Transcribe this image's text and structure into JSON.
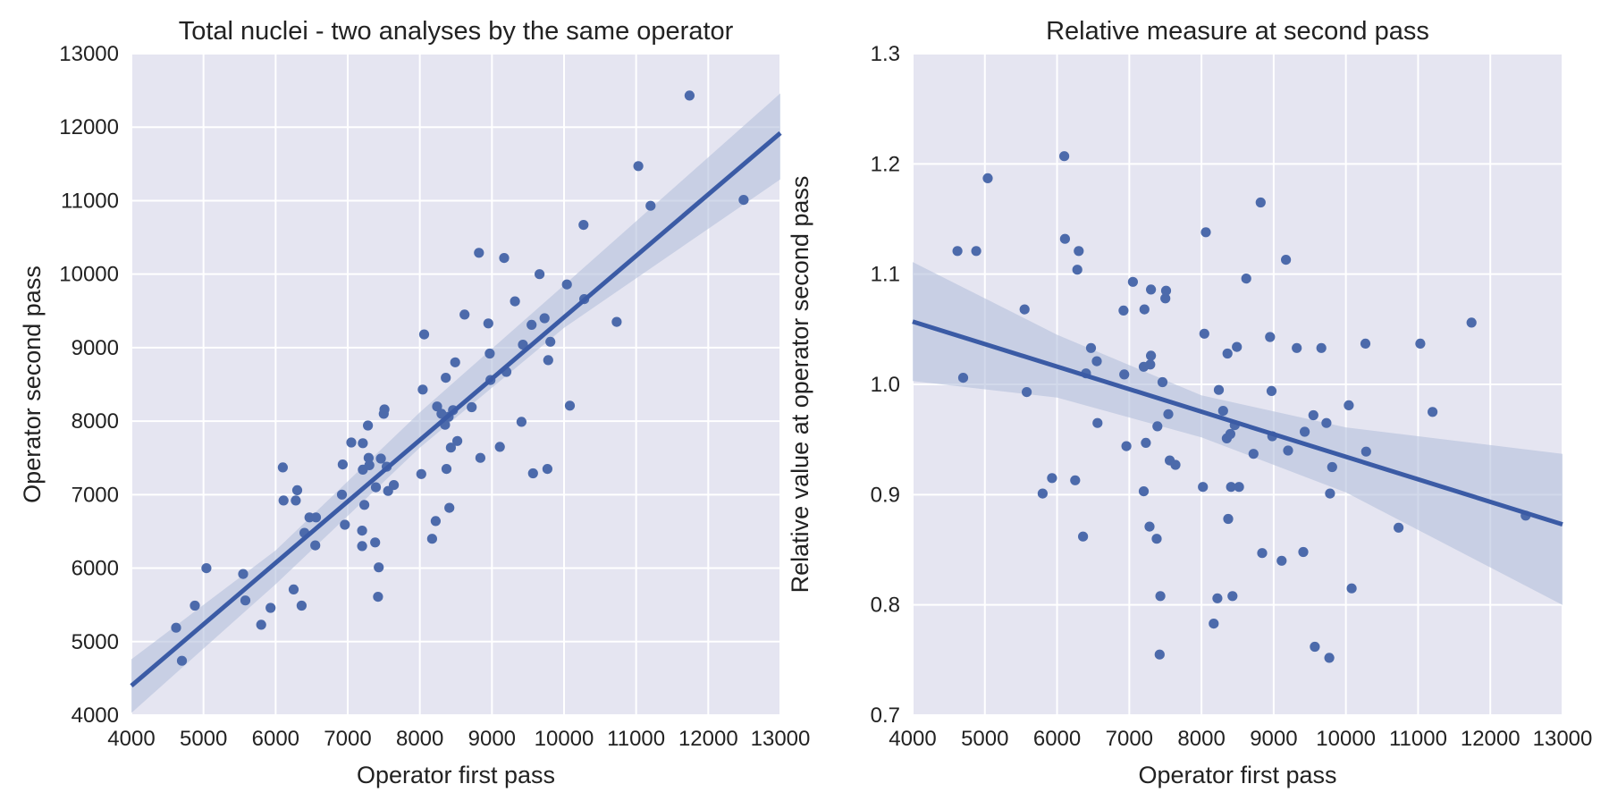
{
  "chart_data": [
    {
      "type": "scatter",
      "title": "Total nuclei - two analyses by the same operator",
      "xlabel": "Operator first pass",
      "ylabel": "Operator second pass",
      "xlim": [
        4000,
        13000
      ],
      "ylim": [
        4000,
        13000
      ],
      "xticks": [
        "4000",
        "5000",
        "6000",
        "7000",
        "8000",
        "9000",
        "10000",
        "11000",
        "12000",
        "13000"
      ],
      "yticks": [
        "4000",
        "5000",
        "6000",
        "7000",
        "8000",
        "9000",
        "10000",
        "11000",
        "12000",
        "13000"
      ],
      "grid": true,
      "background": "#e5e5f1",
      "point_color": "#4c6aab",
      "line_color": "#3b5ba5",
      "band_color": "#b4c0dc",
      "regression": {
        "x": [
          4000,
          13000
        ],
        "y": [
          4400,
          11920
        ]
      },
      "ci_band": {
        "x": [
          4000,
          6000,
          8000,
          10000,
          13000
        ],
        "lower": [
          4030,
          5780,
          7640,
          9270,
          11290
        ],
        "upper": [
          4760,
          6240,
          8120,
          9850,
          12460
        ]
      },
      "points": [
        [
          4620,
          5190
        ],
        [
          4700,
          4740
        ],
        [
          4880,
          5490
        ],
        [
          5040,
          6000
        ],
        [
          5550,
          5920
        ],
        [
          5580,
          5560
        ],
        [
          5800,
          5230
        ],
        [
          5930,
          5460
        ],
        [
          6100,
          7370
        ],
        [
          6110,
          6920
        ],
        [
          6250,
          5710
        ],
        [
          6280,
          6920
        ],
        [
          6300,
          7060
        ],
        [
          6360,
          5490
        ],
        [
          6400,
          6480
        ],
        [
          6470,
          6690
        ],
        [
          6550,
          6310
        ],
        [
          6560,
          6690
        ],
        [
          6920,
          7000
        ],
        [
          6930,
          7410
        ],
        [
          6960,
          6590
        ],
        [
          7050,
          7710
        ],
        [
          7200,
          6300
        ],
        [
          7200,
          6510
        ],
        [
          7210,
          7700
        ],
        [
          7210,
          7340
        ],
        [
          7230,
          6860
        ],
        [
          7280,
          7940
        ],
        [
          7290,
          7500
        ],
        [
          7300,
          7400
        ],
        [
          7380,
          6350
        ],
        [
          7390,
          7100
        ],
        [
          7420,
          5610
        ],
        [
          7430,
          6010
        ],
        [
          7460,
          7490
        ],
        [
          7500,
          8100
        ],
        [
          7510,
          8160
        ],
        [
          7540,
          7380
        ],
        [
          7560,
          7050
        ],
        [
          7640,
          7130
        ],
        [
          8020,
          7280
        ],
        [
          8040,
          8430
        ],
        [
          8060,
          9180
        ],
        [
          8170,
          6400
        ],
        [
          8220,
          6640
        ],
        [
          8240,
          8200
        ],
        [
          8300,
          8100
        ],
        [
          8350,
          7950
        ],
        [
          8360,
          8590
        ],
        [
          8370,
          7350
        ],
        [
          8400,
          8060
        ],
        [
          8410,
          6820
        ],
        [
          8430,
          7640
        ],
        [
          8460,
          8150
        ],
        [
          8490,
          8800
        ],
        [
          8520,
          7730
        ],
        [
          8620,
          9450
        ],
        [
          8720,
          8190
        ],
        [
          8820,
          10290
        ],
        [
          8840,
          7500
        ],
        [
          8950,
          9330
        ],
        [
          8970,
          8920
        ],
        [
          8980,
          8560
        ],
        [
          9110,
          7650
        ],
        [
          9170,
          10220
        ],
        [
          9200,
          8670
        ],
        [
          9320,
          9630
        ],
        [
          9410,
          7990
        ],
        [
          9430,
          9040
        ],
        [
          9550,
          9310
        ],
        [
          9570,
          7290
        ],
        [
          9660,
          10000
        ],
        [
          9730,
          9400
        ],
        [
          9770,
          7350
        ],
        [
          9780,
          8830
        ],
        [
          9810,
          9080
        ],
        [
          10040,
          9860
        ],
        [
          10080,
          8210
        ],
        [
          10270,
          10670
        ],
        [
          10280,
          9660
        ],
        [
          10730,
          9350
        ],
        [
          11030,
          11470
        ],
        [
          11200,
          10930
        ],
        [
          11740,
          12430
        ],
        [
          12490,
          11010
        ]
      ]
    },
    {
      "type": "scatter",
      "title": "Relative measure at second pass",
      "xlabel": "Operator first pass",
      "ylabel": "Relative value at operator second pass",
      "xlim": [
        4000,
        13000
      ],
      "ylim": [
        0.7,
        1.3
      ],
      "xticks": [
        "4000",
        "5000",
        "6000",
        "7000",
        "8000",
        "9000",
        "10000",
        "11000",
        "12000",
        "13000"
      ],
      "yticks": [
        "0.7",
        "0.8",
        "0.9",
        "1.0",
        "1.1",
        "1.2",
        "1.3"
      ],
      "grid": true,
      "background": "#e5e5f1",
      "point_color": "#4c6aab",
      "line_color": "#3b5ba5",
      "band_color": "#b4c0dc",
      "regression": {
        "x": [
          4000,
          13000
        ],
        "y": [
          1.057,
          0.873
        ]
      },
      "ci_band": {
        "x": [
          4000,
          6000,
          8000,
          10000,
          13000
        ],
        "lower": [
          1.003,
          0.988,
          0.952,
          0.902,
          0.8
        ],
        "upper": [
          1.111,
          1.045,
          0.99,
          0.961,
          0.937
        ]
      },
      "points": [
        [
          4620,
          1.121
        ],
        [
          4700,
          1.006
        ],
        [
          4880,
          1.121
        ],
        [
          5040,
          1.187
        ],
        [
          5550,
          1.068
        ],
        [
          5580,
          0.993
        ],
        [
          5800,
          0.901
        ],
        [
          5930,
          0.915
        ],
        [
          6100,
          1.207
        ],
        [
          6110,
          1.132
        ],
        [
          6250,
          0.913
        ],
        [
          6280,
          1.104
        ],
        [
          6300,
          1.121
        ],
        [
          6360,
          0.862
        ],
        [
          6400,
          1.01
        ],
        [
          6470,
          1.033
        ],
        [
          6550,
          1.021
        ],
        [
          6560,
          0.965
        ],
        [
          6920,
          1.067
        ],
        [
          6930,
          1.009
        ],
        [
          6960,
          0.944
        ],
        [
          7050,
          1.093
        ],
        [
          7200,
          0.903
        ],
        [
          7200,
          1.016
        ],
        [
          7210,
          1.068
        ],
        [
          7230,
          0.947
        ],
        [
          7280,
          0.871
        ],
        [
          7290,
          1.018
        ],
        [
          7300,
          1.026
        ],
        [
          7300,
          1.086
        ],
        [
          7380,
          0.86
        ],
        [
          7390,
          0.962
        ],
        [
          7420,
          0.755
        ],
        [
          7430,
          0.808
        ],
        [
          7460,
          1.002
        ],
        [
          7500,
          1.078
        ],
        [
          7510,
          1.085
        ],
        [
          7540,
          0.973
        ],
        [
          7560,
          0.931
        ],
        [
          7640,
          0.927
        ],
        [
          8020,
          0.907
        ],
        [
          8040,
          1.046
        ],
        [
          8060,
          1.138
        ],
        [
          8170,
          0.783
        ],
        [
          8220,
          0.806
        ],
        [
          8240,
          0.995
        ],
        [
          8300,
          0.976
        ],
        [
          8350,
          0.951
        ],
        [
          8360,
          1.028
        ],
        [
          8370,
          0.878
        ],
        [
          8400,
          0.955
        ],
        [
          8410,
          0.907
        ],
        [
          8430,
          0.808
        ],
        [
          8460,
          0.963
        ],
        [
          8490,
          1.034
        ],
        [
          8520,
          0.907
        ],
        [
          8620,
          1.096
        ],
        [
          8720,
          0.937
        ],
        [
          8820,
          1.165
        ],
        [
          8840,
          0.847
        ],
        [
          8950,
          1.043
        ],
        [
          8970,
          0.994
        ],
        [
          8980,
          0.953
        ],
        [
          9110,
          0.84
        ],
        [
          9170,
          1.113
        ],
        [
          9200,
          0.94
        ],
        [
          9320,
          1.033
        ],
        [
          9410,
          0.848
        ],
        [
          9430,
          0.957
        ],
        [
          9550,
          0.972
        ],
        [
          9570,
          0.762
        ],
        [
          9660,
          1.033
        ],
        [
          9730,
          0.965
        ],
        [
          9770,
          0.752
        ],
        [
          9780,
          0.901
        ],
        [
          9810,
          0.925
        ],
        [
          10040,
          0.981
        ],
        [
          10080,
          0.815
        ],
        [
          10270,
          1.037
        ],
        [
          10280,
          0.939
        ],
        [
          10730,
          0.87
        ],
        [
          11030,
          1.037
        ],
        [
          11200,
          0.975
        ],
        [
          11740,
          1.056
        ],
        [
          12490,
          0.881
        ]
      ]
    }
  ]
}
